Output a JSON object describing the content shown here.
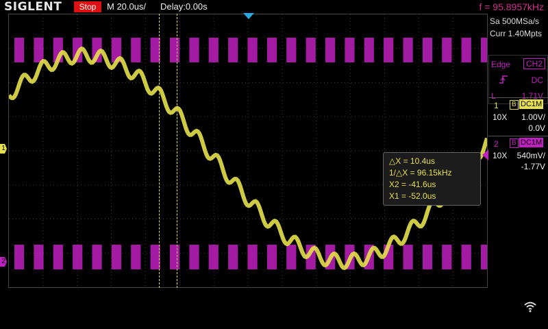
{
  "header": {
    "brand": "SIGLENT",
    "run_state": "Stop",
    "timebase": "M 20.0us/",
    "delay": "Delay:0.00s",
    "frequency": "f = 95.8957kHz"
  },
  "acquisition": {
    "sample_rate": "Sa 500MSa/s",
    "memory": "Curr 1.40Mpts"
  },
  "trigger": {
    "type": "Edge",
    "source": "CH2",
    "coupling": "DC",
    "level_label": "L",
    "level_value": "1.71V",
    "slope_icon": "rising-edge-icon"
  },
  "channels": [
    {
      "number": "1",
      "bw": "B",
      "coupling": "DC1M",
      "probe": "10X",
      "scale": "1.00V/",
      "offset": "0.0V",
      "color": "#e6e04a"
    },
    {
      "number": "2",
      "bw": "B",
      "coupling": "DC1M",
      "probe": "10X",
      "scale": "540mV/",
      "offset": "-1.77V",
      "color": "#c020c0"
    }
  ],
  "markers": {
    "ch1": "1",
    "ch2": "2"
  },
  "cursors": {
    "delta_x": "△X = 10.4us",
    "inv_delta_x": "1/△X = 96.15kHz",
    "x2": "X2 = -41.6us",
    "x1": "X1 = -52.0us"
  },
  "status": {
    "wifi_icon": "wifi-icon"
  }
}
